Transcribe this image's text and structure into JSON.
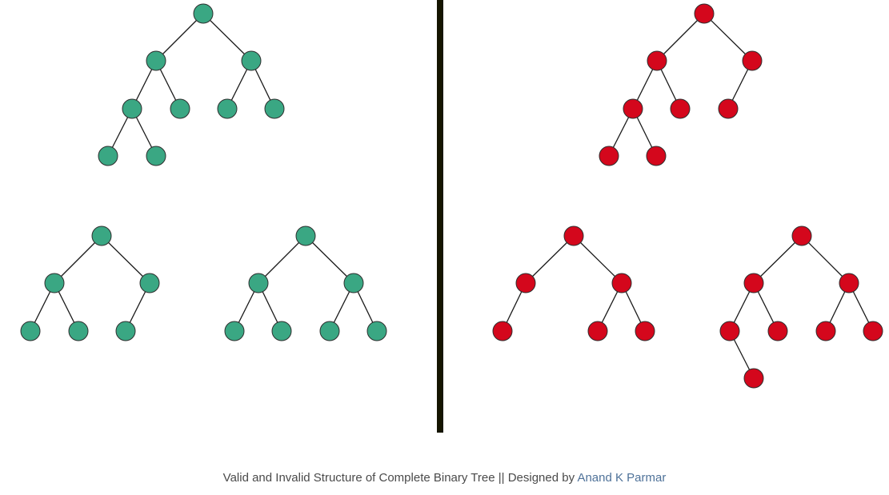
{
  "caption": {
    "text": "Valid and Invalid Structure of Complete Binary Tree || Designed by",
    "author": "Anand K Parmar"
  },
  "colors": {
    "valid_node": "#3aa783",
    "invalid_node": "#d4071c",
    "node_stroke": "#2e2e2e",
    "edge": "#1a1a1a",
    "divider": "#151500"
  },
  "trees": [
    {
      "id": "valid-1",
      "group": "valid",
      "edges": [
        [
          0,
          1
        ],
        [
          0,
          2
        ],
        [
          1,
          3
        ],
        [
          1,
          4
        ],
        [
          2,
          5
        ],
        [
          2,
          6
        ],
        [
          3,
          7
        ],
        [
          3,
          8
        ]
      ]
    },
    {
      "id": "valid-2",
      "group": "valid",
      "edges": [
        [
          0,
          1
        ],
        [
          0,
          2
        ],
        [
          1,
          3
        ],
        [
          1,
          4
        ],
        [
          2,
          5
        ]
      ]
    },
    {
      "id": "valid-3",
      "group": "valid",
      "edges": [
        [
          0,
          1
        ],
        [
          0,
          2
        ],
        [
          1,
          3
        ],
        [
          1,
          4
        ],
        [
          2,
          5
        ],
        [
          2,
          6
        ]
      ]
    },
    {
      "id": "invalid-1",
      "group": "invalid",
      "edges": [
        [
          0,
          1
        ],
        [
          0,
          2
        ],
        [
          1,
          3
        ],
        [
          1,
          4
        ],
        [
          2,
          5
        ],
        [
          3,
          6
        ],
        [
          3,
          7
        ]
      ]
    },
    {
      "id": "invalid-2",
      "group": "invalid",
      "edges": [
        [
          0,
          1
        ],
        [
          0,
          2
        ],
        [
          1,
          3
        ],
        [
          2,
          4
        ],
        [
          2,
          5
        ]
      ]
    },
    {
      "id": "invalid-3",
      "group": "invalid",
      "edges": [
        [
          0,
          1
        ],
        [
          0,
          2
        ],
        [
          1,
          3
        ],
        [
          1,
          4
        ],
        [
          2,
          5
        ],
        [
          2,
          6
        ],
        [
          3,
          7
        ]
      ]
    }
  ]
}
